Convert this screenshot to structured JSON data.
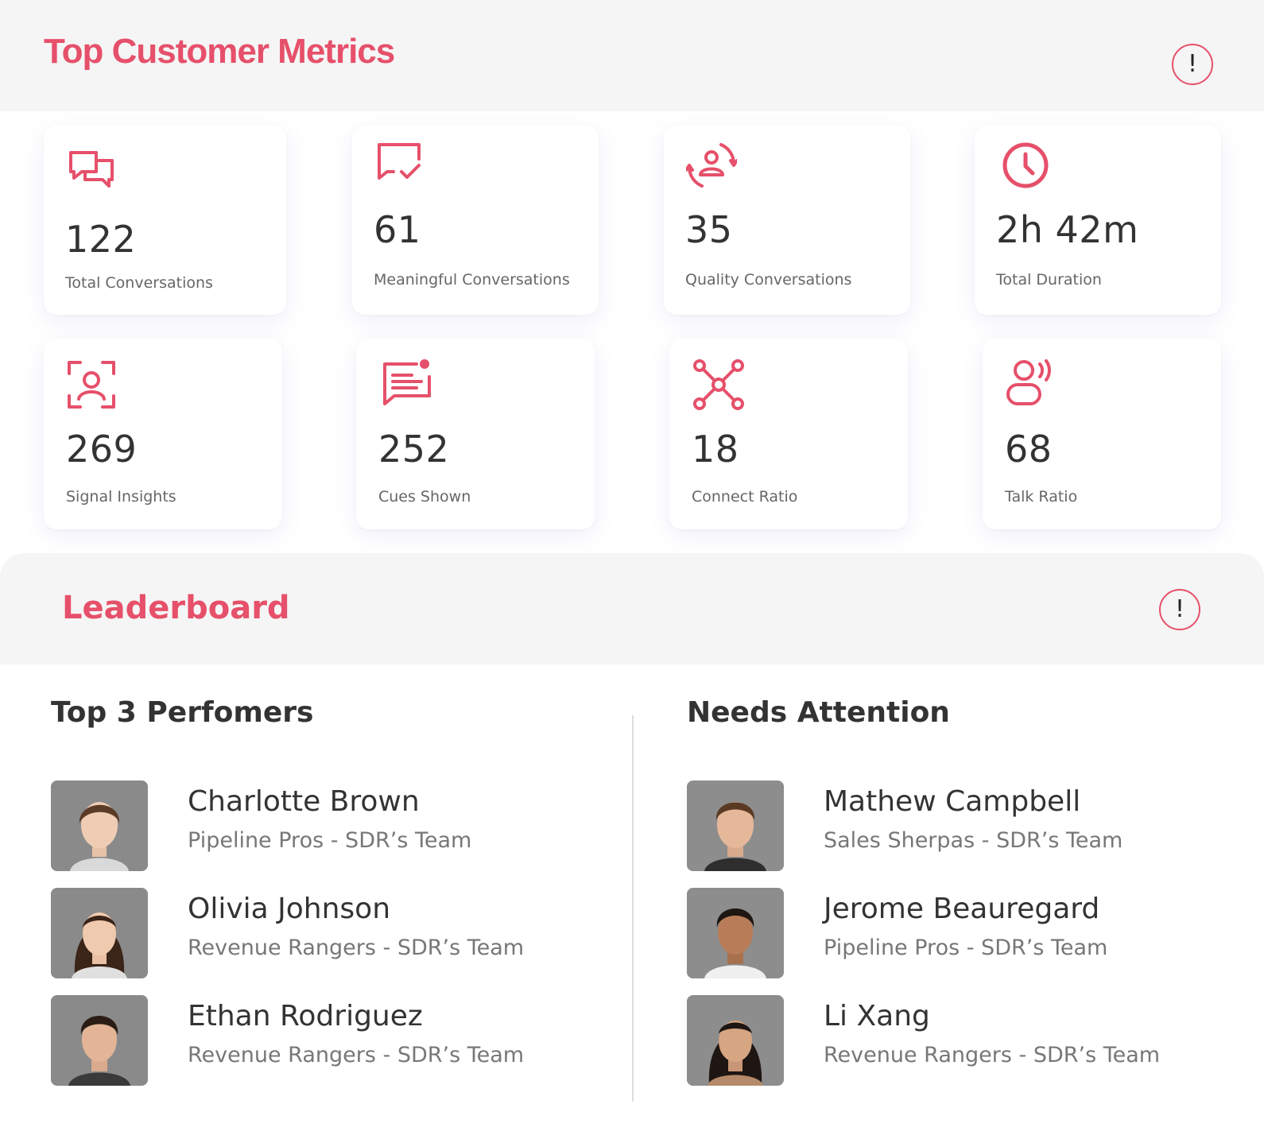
{
  "metrics": {
    "title": "Top Customer Metrics",
    "cards": [
      {
        "value": "122",
        "label": "Total Conversations",
        "icon": "chat-bubbles-icon"
      },
      {
        "value": "61",
        "label": "Meaningful Conversations",
        "icon": "chat-check-icon"
      },
      {
        "value": "35",
        "label": "Quality Conversations",
        "icon": "user-refresh-icon"
      },
      {
        "value": "2h 42m",
        "label": "Total Duration",
        "icon": "clock-icon"
      },
      {
        "value": "269",
        "label": "Signal Insights",
        "icon": "face-scan-icon"
      },
      {
        "value": "252",
        "label": "Cues Shown",
        "icon": "message-notification-icon"
      },
      {
        "value": "18",
        "label": "Connect Ratio",
        "icon": "network-nodes-icon"
      },
      {
        "value": "68",
        "label": "Talk Ratio",
        "icon": "user-voice-icon"
      }
    ]
  },
  "leaderboard": {
    "title": "Leaderboard",
    "top_performers": {
      "title": "Top 3 Perfomers",
      "people": [
        {
          "name": "Charlotte Brown",
          "team": "Pipeline Pros - SDR’s Team"
        },
        {
          "name": "Olivia Johnson",
          "team": "Revenue Rangers - SDR’s Team"
        },
        {
          "name": "Ethan Rodriguez",
          "team": "Revenue Rangers - SDR’s Team"
        }
      ]
    },
    "needs_attention": {
      "title": "Needs Attention",
      "people": [
        {
          "name": "Mathew Campbell",
          "team": "Sales Sherpas - SDR’s Team"
        },
        {
          "name": "Jerome Beauregard",
          "team": "Pipeline Pros - SDR’s Team"
        },
        {
          "name": "Li Xang",
          "team": "Revenue Rangers - SDR’s Team"
        }
      ]
    }
  },
  "colors": {
    "accent": "#e6506a",
    "header_bg": "#f5f5f5",
    "text": "#333333",
    "muted_text": "#777777"
  }
}
